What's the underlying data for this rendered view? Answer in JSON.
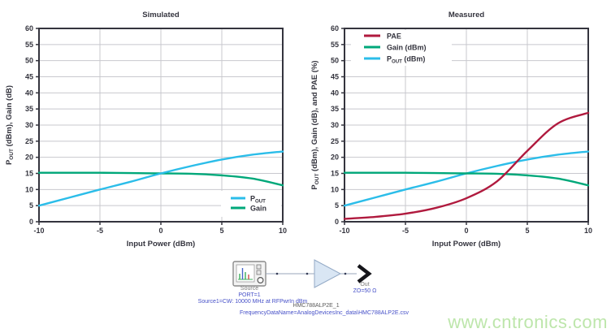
{
  "page": {
    "background": "#ffffff"
  },
  "colors": {
    "axis": "#34343e",
    "grid": "#c8c8ce",
    "tick_text": "#34343e",
    "pout_cyan": "#2bbde9",
    "gain_green": "#00a87a",
    "pae_crimson": "#b01a3e",
    "amp_fill": "#d9e6f4",
    "amp_stroke": "#94aac6",
    "schematic_blue": "#4650c8",
    "watermark_green": "#bde6ab"
  },
  "chart_data": [
    {
      "type": "line",
      "title": "Simulated",
      "xlabel": "Input Power (dBm)",
      "ylabel": "P~OUT~ (dBm), Gain (dB)",
      "xlim": [
        -10,
        10
      ],
      "ylim": [
        0,
        60
      ],
      "xticks": [
        -10,
        -5,
        0,
        5,
        10
      ],
      "ytick_step": 5,
      "grid": true,
      "legend_position": "bottom-right",
      "series": [
        {
          "name": "P~OUT~",
          "color": "#2bbde9",
          "x": [
            -10,
            -7.5,
            -5,
            -2.5,
            0,
            2.5,
            5,
            7.5,
            10
          ],
          "y": [
            5,
            7.5,
            10,
            12.4,
            15,
            17.3,
            19.3,
            20.8,
            21.8
          ]
        },
        {
          "name": "Gain",
          "color": "#00a87a",
          "x": [
            -10,
            -7.5,
            -5,
            -2.5,
            0,
            2.5,
            5,
            7.5,
            10
          ],
          "y": [
            15.2,
            15.2,
            15.2,
            15.1,
            15.0,
            14.9,
            14.4,
            13.4,
            11.3
          ]
        }
      ]
    },
    {
      "type": "line",
      "title": "Measured",
      "xlabel": "Input Power (dBm)",
      "ylabel": "P~OUT~ (dBm), Gain (dB), and PAE (%)",
      "xlim": [
        -10,
        10
      ],
      "ylim": [
        0,
        60
      ],
      "xticks": [
        -10,
        -5,
        0,
        5,
        10
      ],
      "ytick_step": 5,
      "grid": true,
      "legend_position": "top-left",
      "series": [
        {
          "name": "PAE",
          "color": "#b01a3e",
          "x": [
            -10,
            -7.5,
            -5,
            -2.5,
            0,
            2.5,
            5,
            7.5,
            10
          ],
          "y": [
            0.9,
            1.5,
            2.5,
            4.3,
            7.3,
            12.5,
            22,
            30.5,
            33.8
          ]
        },
        {
          "name": "Gain (dBm)",
          "color": "#00a87a",
          "x": [
            -10,
            -7.5,
            -5,
            -2.5,
            0,
            2.5,
            5,
            7.5,
            10
          ],
          "y": [
            15.2,
            15.2,
            15.2,
            15.1,
            15.0,
            14.9,
            14.4,
            13.4,
            11.3
          ]
        },
        {
          "name": "P~OUT~ (dBm)",
          "color": "#2bbde9",
          "x": [
            -10,
            -7.5,
            -5,
            -2.5,
            0,
            2.5,
            5,
            7.5,
            10
          ],
          "y": [
            5,
            7.5,
            10,
            12.4,
            15,
            17.3,
            19.3,
            20.8,
            21.8
          ]
        }
      ]
    }
  ],
  "schematic": {
    "source_label": "Source",
    "source_port": "PORT=1",
    "source_params": "Source1=CW: 10000 MHz at RFPwrIn dBm",
    "out_label": "Out",
    "out_impedance": "ZO=50 Ω",
    "part_name": "HMC788ALP2E_1",
    "part_data": "FrequencyDataName=AnalogDevicesInc_data\\HMC788ALP2E.csv"
  },
  "watermark": {
    "text": "www.cntronics.com",
    "color": "#bde6ab"
  }
}
